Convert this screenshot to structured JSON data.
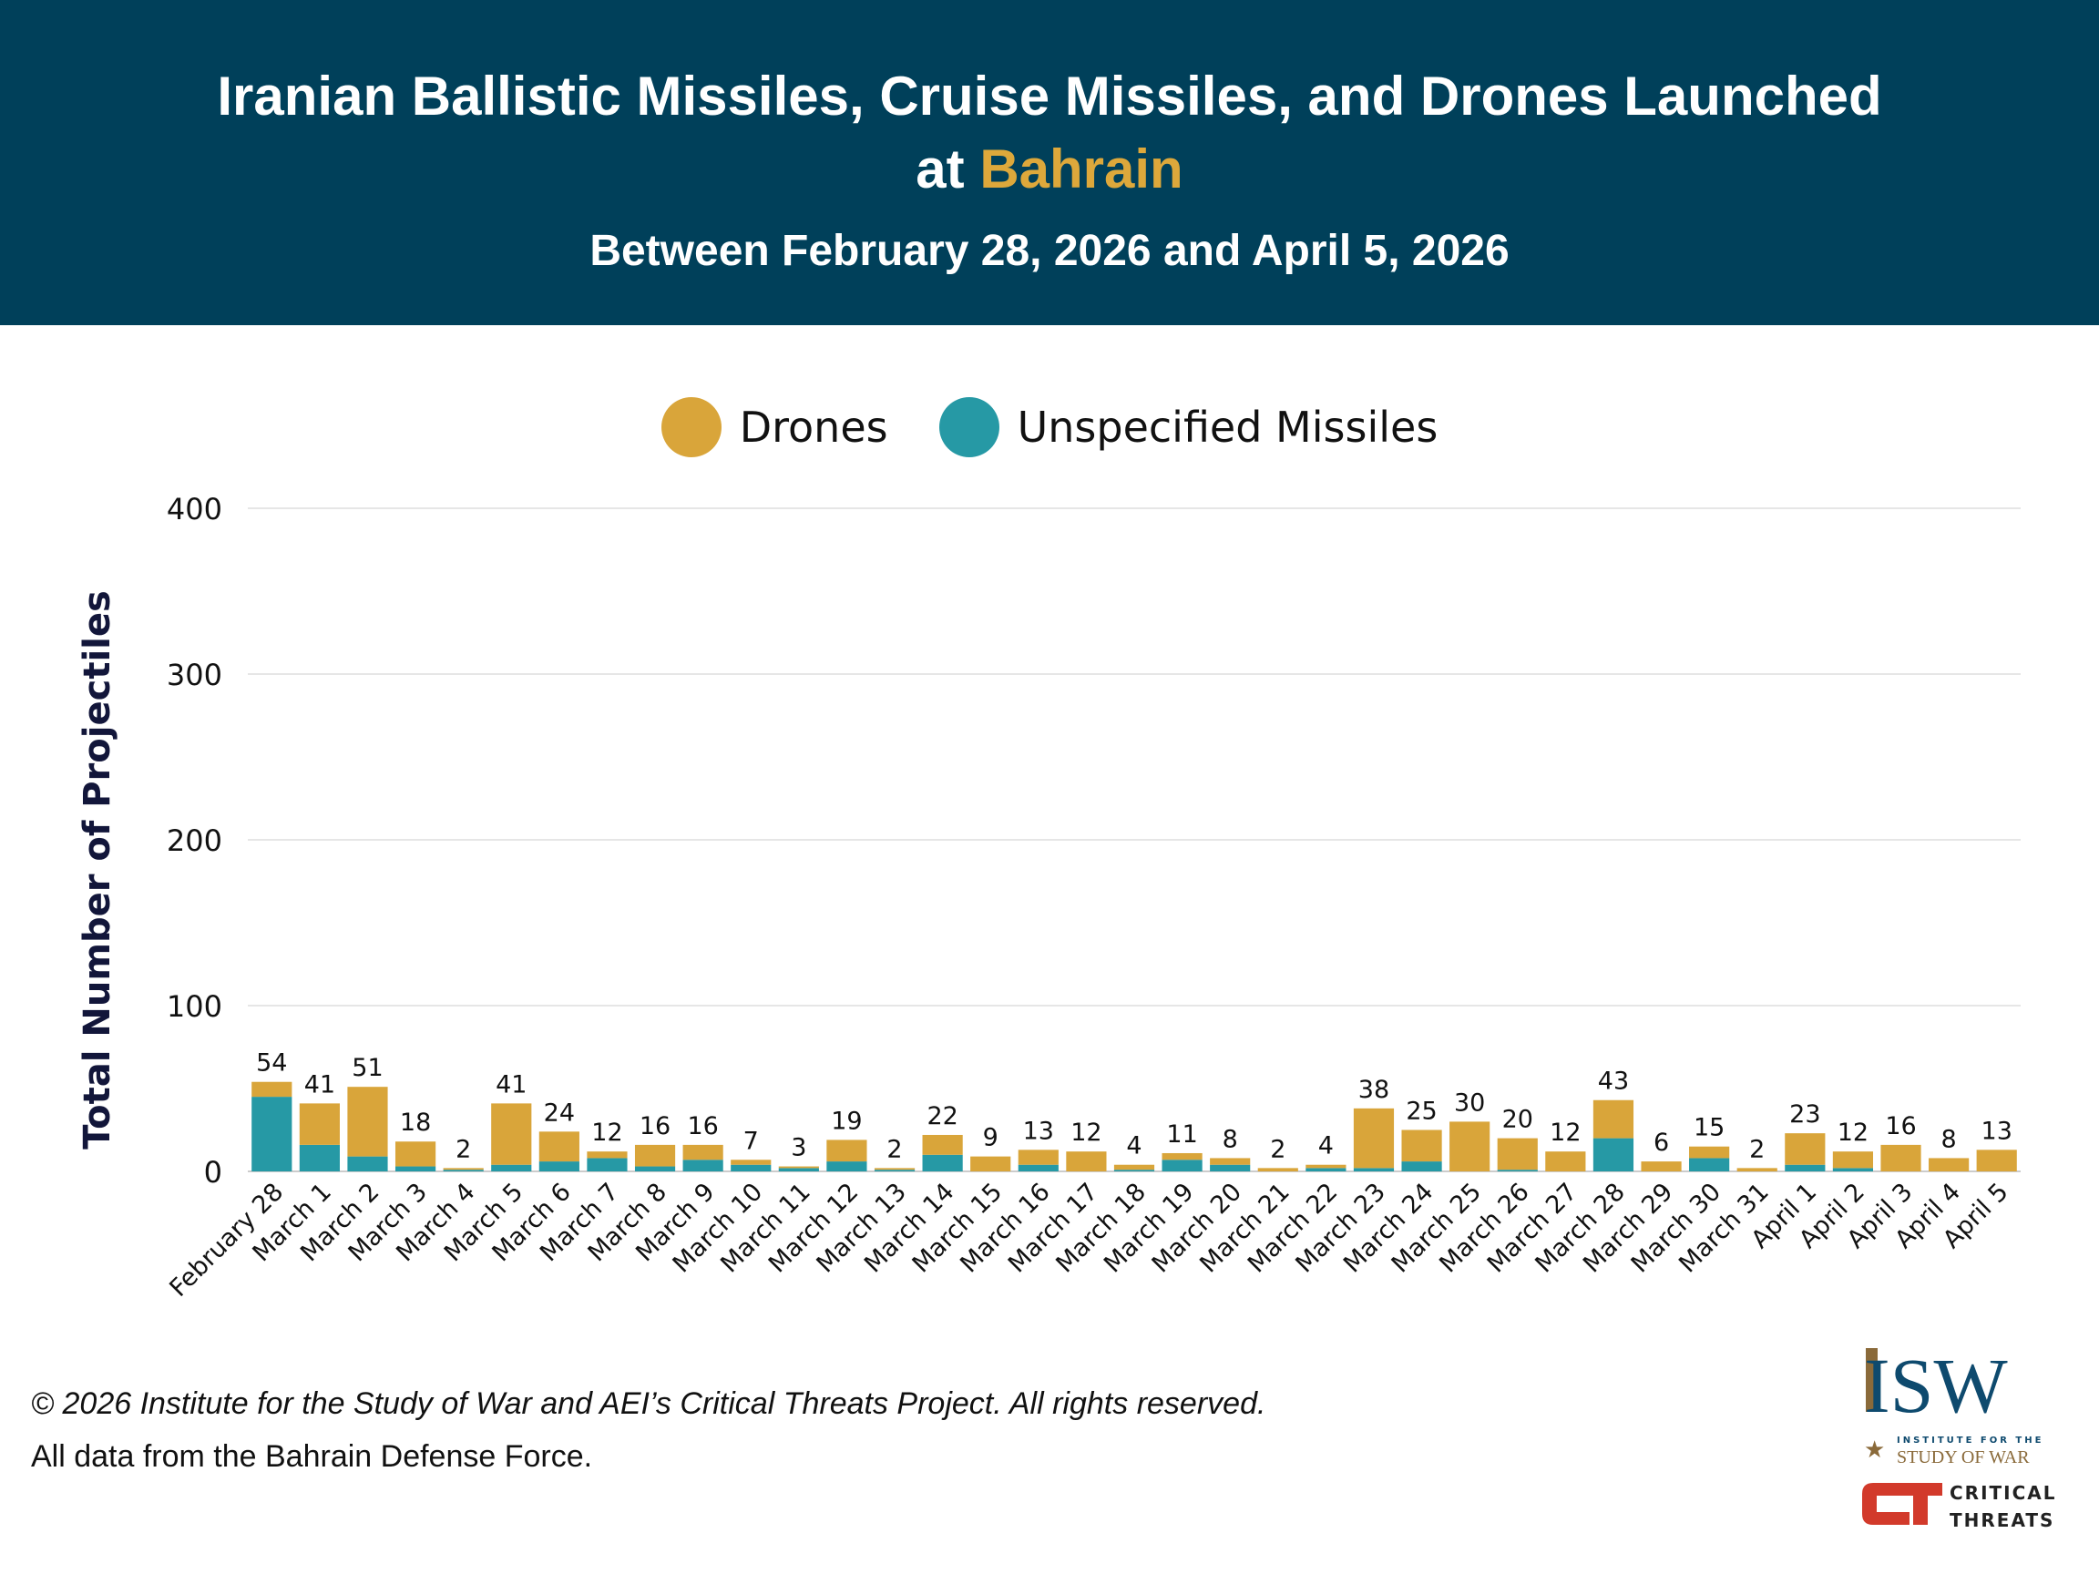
{
  "header": {
    "title_line1": "Iranian Ballistic Missiles, Cruise Missiles, and Drones Launched",
    "title_line2_prefix": "at ",
    "title_highlight": "Bahrain",
    "subtitle": "Between February 28, 2026 and April 5, 2026"
  },
  "colors": {
    "header_bg": "#00405a",
    "highlight": "#dda83b",
    "drones": "#d9a53a",
    "missiles": "#2699a5"
  },
  "chart_data": {
    "type": "bar",
    "stacked": true,
    "ylabel": "Total Number of Projectiles",
    "xlabel": "",
    "ylim": [
      0,
      400
    ],
    "yticks": [
      0,
      100,
      200,
      300,
      400
    ],
    "grid": true,
    "legend_position": "top",
    "categories": [
      "February 28",
      "March 1",
      "March 2",
      "March 3",
      "March 4",
      "March 5",
      "March 6",
      "March 7",
      "March 8",
      "March 9",
      "March 10",
      "March 11",
      "March 12",
      "March 13",
      "March 14",
      "March 15",
      "March 16",
      "March 17",
      "March 18",
      "March 19",
      "March 20",
      "March 21",
      "March 22",
      "March 23",
      "March 24",
      "March 25",
      "March 26",
      "March 27",
      "March 28",
      "March 29",
      "March 30",
      "March 31",
      "April 1",
      "April 2",
      "April 3",
      "April 4",
      "April 5"
    ],
    "series": [
      {
        "name": "Unspecified Missiles",
        "values": [
          45,
          16,
          9,
          3,
          1,
          4,
          6,
          8,
          3,
          7,
          4,
          2,
          6,
          1,
          10,
          0,
          4,
          0,
          1,
          7,
          4,
          0,
          2,
          2,
          6,
          0,
          1,
          0,
          20,
          0,
          8,
          0,
          4,
          2,
          0,
          0,
          0
        ]
      },
      {
        "name": "Drones",
        "values": [
          9,
          25,
          42,
          15,
          1,
          37,
          18,
          4,
          13,
          9,
          3,
          1,
          13,
          1,
          12,
          9,
          9,
          12,
          3,
          4,
          4,
          2,
          2,
          36,
          19,
          30,
          19,
          12,
          23,
          6,
          7,
          2,
          19,
          10,
          16,
          8,
          13
        ]
      }
    ],
    "totals": [
      54,
      41,
      51,
      18,
      2,
      41,
      24,
      12,
      16,
      16,
      7,
      3,
      19,
      2,
      22,
      9,
      13,
      12,
      4,
      11,
      8,
      2,
      4,
      38,
      25,
      30,
      20,
      12,
      43,
      6,
      15,
      2,
      23,
      12,
      16,
      8,
      13
    ]
  },
  "footer": {
    "copyright": "© 2026 Institute for the Study of War and AEI’s Critical Threats Project. All rights reserved.",
    "source": "All data from the Bahrain Defense Force."
  },
  "logos": {
    "isw": "ISW",
    "isw_line1": "INSTITUTE FOR THE",
    "isw_line2": "STUDY OF WAR",
    "ct_line1": "CRITICAL",
    "ct_line2": "THREATS"
  }
}
